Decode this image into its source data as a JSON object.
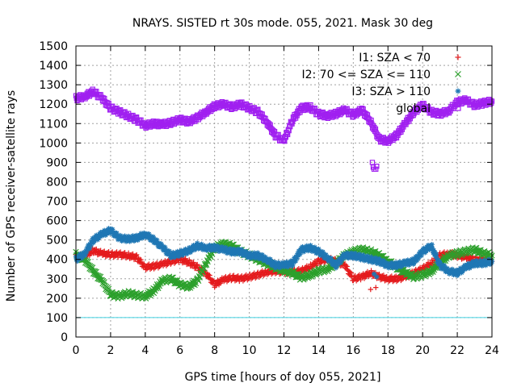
{
  "chart_data": {
    "type": "scatter",
    "title": "NRAYS. SISTED rt 30s mode. 055, 2021. Mask 30 deg",
    "xlabel": "GPS time [hours of doy 055, 2021]",
    "ylabel": "Number of GPS receiver-satellite rays",
    "xlim": [
      0,
      24
    ],
    "ylim": [
      0,
      1500
    ],
    "x_ticks": [
      "0",
      "2",
      "4",
      "6",
      "8",
      "10",
      "12",
      "14",
      "16",
      "18",
      "20",
      "22",
      "24"
    ],
    "y_ticks": [
      "0",
      "100",
      "200",
      "300",
      "400",
      "500",
      "600",
      "700",
      "800",
      "900",
      "1000",
      "1100",
      "1200",
      "1300",
      "1400",
      "1500"
    ],
    "grid": true,
    "legend_position": "top-right",
    "reference_line": {
      "y": 100,
      "color": "#40d0e0"
    },
    "series": [
      {
        "name": "I1: SZA < 70",
        "marker": "+",
        "color": "#e41a1c",
        "x": [
          0,
          0.5,
          1,
          1.5,
          2,
          2.5,
          3,
          3.5,
          4,
          4.5,
          5,
          5.5,
          6,
          6.5,
          7,
          7.5,
          8,
          8.5,
          9,
          9.5,
          10,
          10.5,
          11,
          11.5,
          12,
          12.5,
          13,
          13.5,
          14,
          14.5,
          15,
          15.5,
          16,
          16.5,
          17,
          17.5,
          18,
          18.5,
          19,
          19.5,
          20,
          20.5,
          21,
          21.5,
          22,
          22.5,
          23,
          23.5,
          24
        ],
        "y": [
          410,
          420,
          445,
          430,
          425,
          425,
          420,
          410,
          360,
          365,
          375,
          390,
          400,
          385,
          360,
          330,
          270,
          295,
          305,
          300,
          310,
          320,
          335,
          340,
          335,
          335,
          340,
          360,
          390,
          400,
          390,
          370,
          300,
          310,
          330,
          310,
          300,
          300,
          310,
          330,
          350,
          380,
          420,
          430,
          420,
          410,
          400,
          395,
          390
        ]
      },
      {
        "name": "I2: 70 <= SZA <= 110",
        "marker": "x",
        "color": "#2ca02c",
        "x": [
          0,
          0.5,
          1,
          1.5,
          2,
          2.5,
          3,
          3.5,
          4,
          4.5,
          5,
          5.5,
          6,
          6.5,
          7,
          7.5,
          8,
          8.5,
          9,
          9.5,
          10,
          10.5,
          11,
          11.5,
          12,
          12.5,
          13,
          13.5,
          14,
          14.5,
          15,
          15.5,
          16,
          16.5,
          17,
          17.5,
          18,
          18.5,
          19,
          19.5,
          20,
          20.5,
          21,
          21.5,
          22,
          22.5,
          23,
          23.5,
          24
        ],
        "y": [
          425,
          400,
          340,
          290,
          220,
          210,
          225,
          215,
          210,
          240,
          290,
          300,
          270,
          260,
          290,
          380,
          460,
          480,
          470,
          440,
          420,
          400,
          380,
          360,
          340,
          330,
          305,
          320,
          340,
          350,
          380,
          420,
          440,
          450,
          440,
          420,
          390,
          360,
          330,
          310,
          320,
          340,
          380,
          420,
          430,
          440,
          450,
          430,
          420
        ]
      },
      {
        "name": "I3: SZA > 110",
        "marker": "*",
        "color": "#1f77b4",
        "x": [
          0,
          0.5,
          1,
          1.5,
          2,
          2.5,
          3,
          3.5,
          4,
          4.5,
          5,
          5.5,
          6,
          6.5,
          7,
          7.5,
          8,
          8.5,
          9,
          9.5,
          10,
          10.5,
          11,
          11.5,
          12,
          12.5,
          13,
          13.5,
          14,
          14.5,
          15,
          15.5,
          16,
          16.5,
          17,
          17.5,
          18,
          18.5,
          19,
          19.5,
          20,
          20.5,
          21,
          21.5,
          22,
          22.5,
          23,
          23.5,
          24
        ],
        "y": [
          400,
          430,
          500,
          530,
          550,
          510,
          505,
          510,
          530,
          500,
          460,
          420,
          430,
          445,
          470,
          460,
          460,
          450,
          440,
          440,
          420,
          420,
          400,
          370,
          370,
          380,
          450,
          460,
          440,
          410,
          370,
          420,
          420,
          410,
          400,
          390,
          370,
          370,
          380,
          390,
          440,
          470,
          370,
          340,
          330,
          360,
          380,
          380,
          390
        ]
      },
      {
        "name": "global",
        "marker": "square",
        "color": "#a020f0",
        "x": [
          0,
          0.5,
          1,
          1.5,
          2,
          2.5,
          3,
          3.5,
          4,
          4.5,
          5,
          5.5,
          6,
          6.5,
          7,
          7.5,
          8,
          8.5,
          9,
          9.5,
          10,
          10.5,
          11,
          11.5,
          12,
          12.5,
          13,
          13.5,
          14,
          14.5,
          15,
          15.5,
          16,
          16.5,
          17,
          17.5,
          18,
          18.5,
          19,
          19.5,
          20,
          20.5,
          21,
          21.5,
          22,
          22.5,
          23,
          23.5,
          24
        ],
        "y": [
          1230,
          1240,
          1265,
          1230,
          1180,
          1160,
          1140,
          1120,
          1090,
          1100,
          1095,
          1105,
          1120,
          1110,
          1130,
          1160,
          1190,
          1200,
          1185,
          1200,
          1180,
          1160,
          1110,
          1040,
          1010,
          1120,
          1180,
          1185,
          1150,
          1140,
          1150,
          1170,
          1145,
          1170,
          1110,
          1020,
          1010,
          1040,
          1100,
          1160,
          1195,
          1160,
          1150,
          1165,
          1210,
          1220,
          1195,
          1205,
          1215
        ]
      }
    ],
    "annotations": [
      {
        "series": "global",
        "x": [
          17.1,
          17.15,
          17.2,
          17.3,
          17.35
        ],
        "y": [
          900,
          875,
          865,
          865,
          880
        ]
      },
      {
        "series": "I1: SZA < 70",
        "x": [
          17.0,
          17.3
        ],
        "y": [
          245,
          255
        ]
      },
      {
        "series": "I3: SZA > 110",
        "x": [
          17.2,
          17.35
        ],
        "y": [
          325,
          310
        ]
      }
    ]
  }
}
